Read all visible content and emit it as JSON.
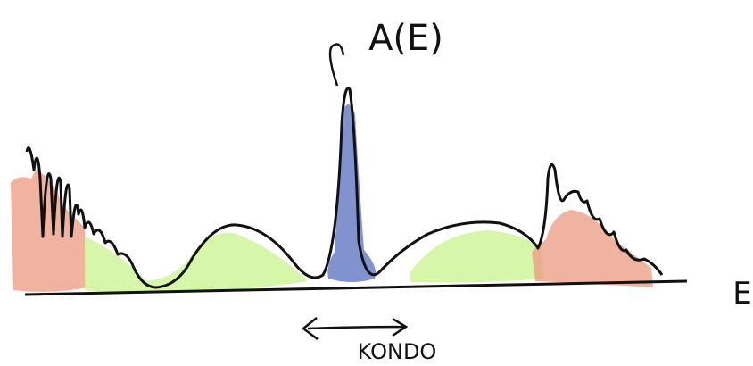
{
  "labels": {
    "spectral_function": "A(E)",
    "energy_axis": "E",
    "kondo": "KONDO"
  }
}
